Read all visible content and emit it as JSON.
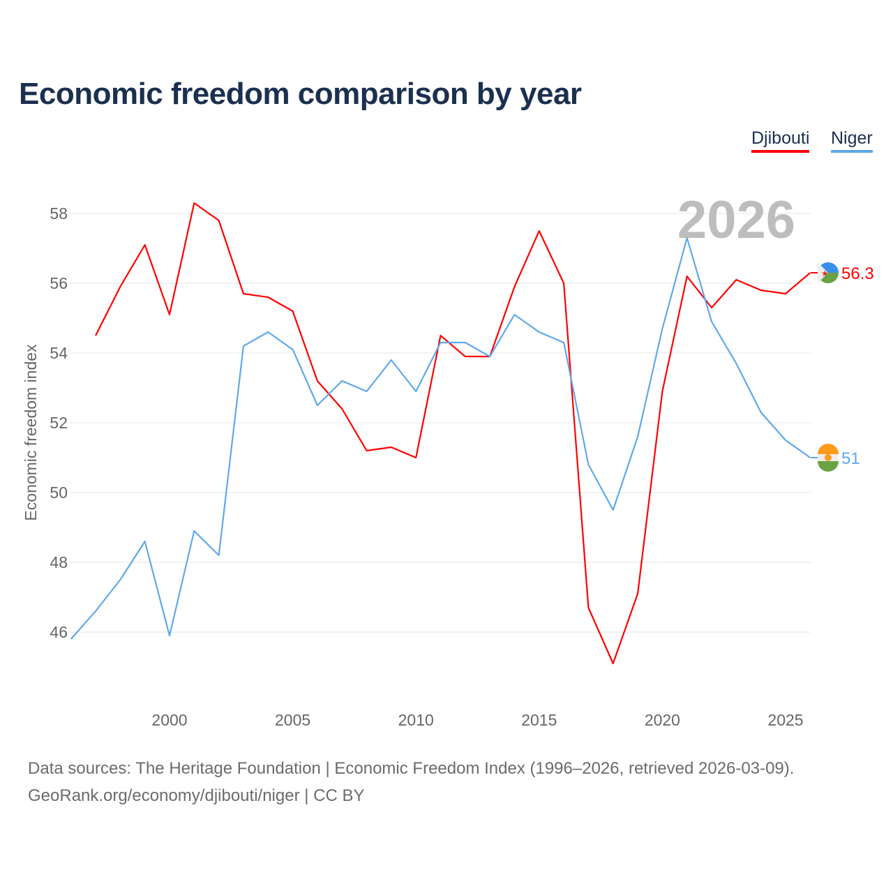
{
  "title": "Economic freedom comparison by year",
  "year_watermark": "2026",
  "sources": {
    "line1": "Data sources: The Heritage Foundation | Economic Freedom Index (1996–2026, retrieved 2026-03-09).",
    "line2": "GeoRank.org/economy/djibouti/niger | CC BY"
  },
  "chart_data": {
    "type": "line",
    "title": "Economic freedom comparison by year",
    "xlabel": "",
    "ylabel": "Economic freedom index",
    "xlim": [
      1996,
      2026
    ],
    "ylim": [
      44.1,
      60
    ],
    "xticks": [
      2000,
      2005,
      2010,
      2015,
      2020,
      2025
    ],
    "yticks": [
      46,
      48,
      50,
      52,
      54,
      56,
      58
    ],
    "grid": true,
    "legend_placement": "top-right",
    "series": [
      {
        "name": "Djibouti",
        "color": "#ff0000",
        "end_label": "56.3",
        "x": [
          1997,
          1998,
          1999,
          2000,
          2001,
          2002,
          2003,
          2004,
          2005,
          2006,
          2007,
          2008,
          2009,
          2010,
          2011,
          2012,
          2013,
          2014,
          2015,
          2016,
          2017,
          2018,
          2019,
          2020,
          2021,
          2022,
          2023,
          2024,
          2025,
          2026
        ],
        "values": [
          54.5,
          55.9,
          57.1,
          55.1,
          58.3,
          57.8,
          55.7,
          55.6,
          55.2,
          53.2,
          52.4,
          51.2,
          51.3,
          51.0,
          54.5,
          53.9,
          53.9,
          55.9,
          57.5,
          56.0,
          46.7,
          45.1,
          47.1,
          52.9,
          56.2,
          55.3,
          56.1,
          55.8,
          55.7,
          56.3
        ]
      },
      {
        "name": "Niger",
        "color": "#5fa8ee",
        "end_label": "51",
        "x": [
          1996,
          1997,
          1998,
          1999,
          2000,
          2001,
          2002,
          2003,
          2004,
          2005,
          2006,
          2007,
          2008,
          2009,
          2010,
          2011,
          2012,
          2013,
          2014,
          2015,
          2016,
          2017,
          2018,
          2019,
          2020,
          2021,
          2022,
          2023,
          2024,
          2025,
          2026
        ],
        "values": [
          45.8,
          46.6,
          47.5,
          48.6,
          45.9,
          48.9,
          48.2,
          54.2,
          54.6,
          54.1,
          52.5,
          53.2,
          52.9,
          53.8,
          52.9,
          54.3,
          54.3,
          53.9,
          55.1,
          54.6,
          54.3,
          50.8,
          49.5,
          51.6,
          54.7,
          57.3,
          54.9,
          53.7,
          52.3,
          51.5,
          51.0
        ]
      }
    ]
  }
}
